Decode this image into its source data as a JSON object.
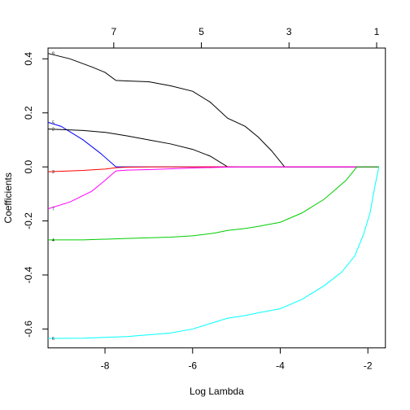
{
  "chart_data": {
    "type": "line",
    "title": "",
    "xlabel": "Log Lambda",
    "ylabel": "Coefficients",
    "xlim": [
      -9.3,
      -1.6
    ],
    "ylim": [
      -0.67,
      0.44
    ],
    "x_ticks": [
      -8,
      -6,
      -4,
      -2
    ],
    "x_tick_labels": [
      "-8",
      "-6",
      "-4",
      "-2"
    ],
    "y_ticks": [
      -0.6,
      -0.4,
      -0.2,
      0.0,
      0.2,
      0.4
    ],
    "y_tick_labels": [
      "-0.6",
      "-0.4",
      "-0.2",
      "0.0",
      "0.2",
      "0.4"
    ],
    "top_axis": {
      "ticks": [
        -7.8,
        -5.8,
        -3.8,
        -1.8
      ],
      "labels": [
        "7",
        "5",
        "3",
        "1"
      ]
    },
    "grid": false,
    "legend": "none",
    "series": [
      {
        "label": "8",
        "color": "#000000",
        "x": [
          -9.3,
          -8.8,
          -8.3,
          -8.0,
          -7.75,
          -7.5,
          -7.0,
          -6.5,
          -6.0,
          -5.6,
          -5.2,
          -4.8,
          -4.5,
          -4.2,
          -3.9,
          -3.5,
          -3.0,
          -2.5,
          -2.0,
          -1.75
        ],
        "y": [
          0.42,
          0.4,
          0.37,
          0.35,
          0.32,
          0.318,
          0.315,
          0.3,
          0.28,
          0.24,
          0.18,
          0.15,
          0.11,
          0.06,
          0.0,
          0.0,
          0.0,
          0.0,
          0.0,
          0.0
        ]
      },
      {
        "label": "5",
        "color": "#0000ff",
        "x": [
          -9.3,
          -9.0,
          -8.5,
          -8.1,
          -7.75,
          -7.0,
          -6.0,
          -5.0,
          -4.0,
          -3.0,
          -2.0,
          -1.75
        ],
        "y": [
          0.165,
          0.15,
          0.1,
          0.05,
          0.0,
          0.0,
          0.0,
          0.0,
          0.0,
          0.0,
          0.0,
          0.0
        ]
      },
      {
        "label": "2",
        "color": "#000000",
        "x": [
          -9.3,
          -8.5,
          -8.0,
          -7.5,
          -7.0,
          -6.5,
          -6.0,
          -5.6,
          -5.2,
          -5.0,
          -4.0,
          -3.0,
          -2.0,
          -1.75
        ],
        "y": [
          0.14,
          0.135,
          0.128,
          0.115,
          0.1,
          0.085,
          0.065,
          0.04,
          0.0,
          0.0,
          0.0,
          0.0,
          0.0,
          0.0
        ]
      },
      {
        "label": "3",
        "color": "#ff0000",
        "x": [
          -9.3,
          -8.5,
          -8.0,
          -7.75,
          -7.5,
          -7.0,
          -6.5,
          -6.0,
          -5.0,
          -4.0,
          -3.0,
          -2.0,
          -1.75
        ],
        "y": [
          -0.018,
          -0.013,
          -0.008,
          -0.003,
          -0.001,
          0.0,
          0.0,
          0.0,
          0.0,
          0.0,
          0.0,
          0.0,
          0.0
        ]
      },
      {
        "label": "7",
        "color": "#ff00ff",
        "x": [
          -9.3,
          -8.8,
          -8.3,
          -8.0,
          -7.75,
          -7.5,
          -7.0,
          -6.5,
          -6.0,
          -5.5,
          -5.0,
          -4.0,
          -3.0,
          -2.0,
          -1.75
        ],
        "y": [
          -0.155,
          -0.13,
          -0.09,
          -0.05,
          -0.015,
          -0.012,
          -0.01,
          -0.007,
          -0.004,
          -0.002,
          0.0,
          0.0,
          0.0,
          0.0,
          0.0
        ]
      },
      {
        "label": "4",
        "color": "#00cd00",
        "x": [
          -9.3,
          -8.5,
          -7.5,
          -6.5,
          -6.0,
          -5.5,
          -5.2,
          -4.8,
          -4.5,
          -4.0,
          -3.5,
          -3.0,
          -2.5,
          -2.25,
          -2.0,
          -1.75
        ],
        "y": [
          -0.27,
          -0.27,
          -0.265,
          -0.26,
          -0.255,
          -0.245,
          -0.235,
          -0.228,
          -0.22,
          -0.205,
          -0.17,
          -0.12,
          -0.05,
          0.0,
          0.0,
          0.0
        ]
      },
      {
        "label": "6",
        "color": "#00ffff",
        "x": [
          -9.3,
          -8.5,
          -7.5,
          -6.5,
          -6.0,
          -5.6,
          -5.2,
          -4.8,
          -4.5,
          -4.0,
          -3.5,
          -3.0,
          -2.6,
          -2.3,
          -2.1,
          -1.95,
          -1.85,
          -1.75
        ],
        "y": [
          -0.635,
          -0.634,
          -0.628,
          -0.615,
          -0.6,
          -0.58,
          -0.56,
          -0.55,
          -0.54,
          -0.525,
          -0.49,
          -0.44,
          -0.39,
          -0.33,
          -0.25,
          -0.17,
          -0.08,
          0.0
        ]
      }
    ]
  }
}
